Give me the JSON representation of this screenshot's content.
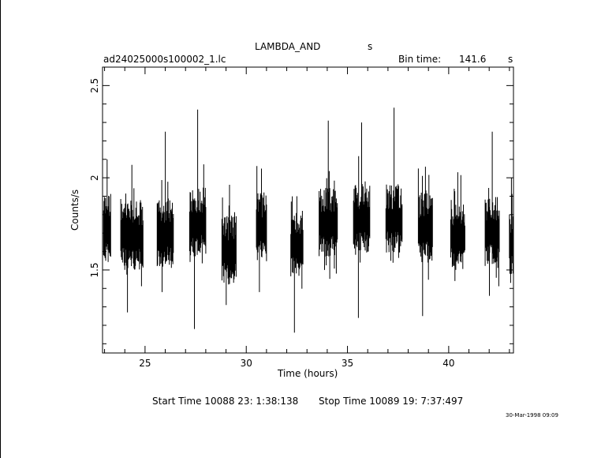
{
  "chart_data": {
    "type": "line",
    "title": "LAMBDA_AND",
    "title_suffix": "s",
    "file_label": "ad24025000s100002_1.lc",
    "bin_time_label": "Bin time:",
    "bin_time_value": "141.6",
    "bin_time_unit": "s",
    "xlabel": "Time (hours)",
    "ylabel": "Counts/s",
    "xlim": [
      22.9,
      43.2
    ],
    "ylim": [
      1.05,
      2.6
    ],
    "x_ticks": [
      "25",
      "30",
      "35",
      "40"
    ],
    "x_tick_values": [
      25,
      30,
      35,
      40
    ],
    "y_ticks": [
      "1.5",
      "2",
      "2.5"
    ],
    "y_tick_values": [
      1.5,
      2.0,
      2.5
    ],
    "segments": [
      {
        "x_start": 22.95,
        "x_end": 23.3,
        "mean": 1.72,
        "low": 1.55,
        "high": 2.1
      },
      {
        "x_start": 23.8,
        "x_end": 24.9,
        "mean": 1.68,
        "low": 1.27,
        "high": 2.07
      },
      {
        "x_start": 25.6,
        "x_end": 26.4,
        "mean": 1.69,
        "low": 1.38,
        "high": 2.25
      },
      {
        "x_start": 27.2,
        "x_end": 28.0,
        "mean": 1.75,
        "low": 1.18,
        "high": 2.37
      },
      {
        "x_start": 28.8,
        "x_end": 29.5,
        "mean": 1.6,
        "low": 1.31,
        "high": 1.85
      },
      {
        "x_start": 30.5,
        "x_end": 31.0,
        "mean": 1.72,
        "low": 1.38,
        "high": 2.05
      },
      {
        "x_start": 32.2,
        "x_end": 32.8,
        "mean": 1.63,
        "low": 1.16,
        "high": 1.9
      },
      {
        "x_start": 33.6,
        "x_end": 34.5,
        "mean": 1.75,
        "low": 1.5,
        "high": 2.31
      },
      {
        "x_start": 35.3,
        "x_end": 36.1,
        "mean": 1.77,
        "low": 1.24,
        "high": 2.3
      },
      {
        "x_start": 36.9,
        "x_end": 37.7,
        "mean": 1.77,
        "low": 1.55,
        "high": 2.38
      },
      {
        "x_start": 38.5,
        "x_end": 39.2,
        "mean": 1.72,
        "low": 1.25,
        "high": 2.06
      },
      {
        "x_start": 40.1,
        "x_end": 40.8,
        "mean": 1.68,
        "low": 1.44,
        "high": 2.03
      },
      {
        "x_start": 41.8,
        "x_end": 42.5,
        "mean": 1.7,
        "low": 1.36,
        "high": 2.25
      },
      {
        "x_start": 43.0,
        "x_end": 43.2,
        "mean": 1.64,
        "low": 1.43,
        "high": 2.0
      }
    ],
    "grid": false,
    "legend": "none"
  },
  "footer": {
    "start_time": "Start Time 10088 23: 1:38:138",
    "stop_time": "Stop Time 10089 19: 7:37:497",
    "timestamp": "30-Mar-1998 09:09"
  }
}
